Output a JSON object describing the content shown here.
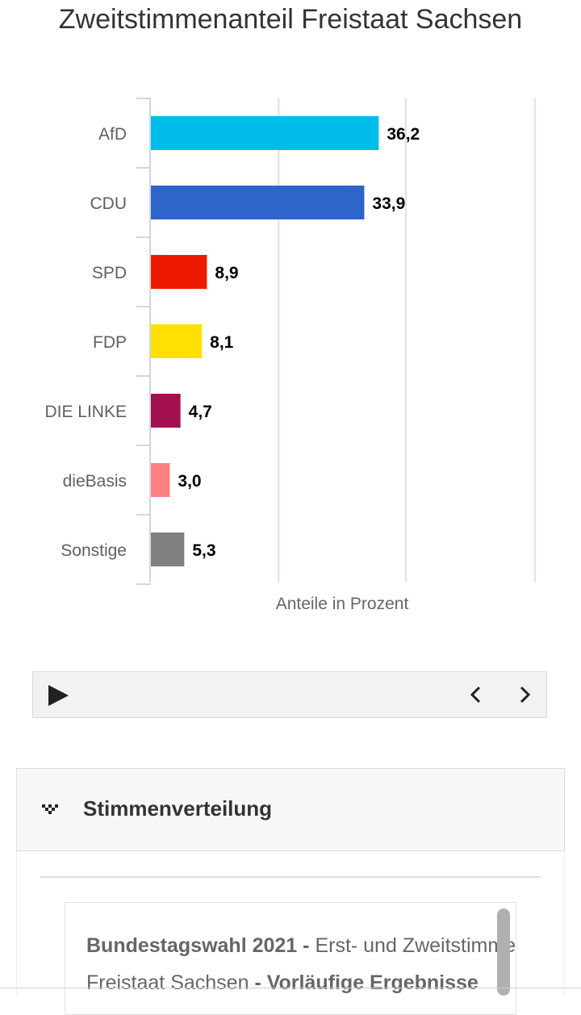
{
  "chart_data": {
    "type": "bar",
    "orientation": "horizontal",
    "title": "Zweitstimmenanteil Freistaat Sachsen",
    "xlabel": "Anteile in Prozent",
    "categories": [
      "AfD",
      "CDU",
      "SPD",
      "FDP",
      "DIE LINKE",
      "dieBasis",
      "Sonstige"
    ],
    "values": [
      36.2,
      33.9,
      8.9,
      8.1,
      4.7,
      3.0,
      5.3
    ],
    "value_labels": [
      "36,2",
      "33,9",
      "8,9",
      "8,1",
      "4,7",
      "3,0",
      "5,3"
    ],
    "colors": [
      "#00bce8",
      "#2e65c9",
      "#ee1a00",
      "#ffe000",
      "#a3104e",
      "#ff8080",
      "#808080"
    ],
    "xlim": [
      0,
      61
    ],
    "gridlines": [
      0,
      20.3,
      40.5,
      61
    ],
    "grid": true,
    "legend": "none"
  },
  "player": {
    "play_icon": "play-icon",
    "prev_icon": "chevron-left-icon",
    "next_icon": "chevron-right-icon"
  },
  "panel": {
    "icon": "chevron-down-icon",
    "title": "Stimmenverteilung"
  },
  "card": {
    "line1_bold": "Bundestagswahl 2021 - ",
    "line1_text": "Erst- und Zweitstimmen",
    "line2_text": "Freistaat Sachsen ",
    "line2_bold": "- Vorläufige Ergebnisse"
  }
}
